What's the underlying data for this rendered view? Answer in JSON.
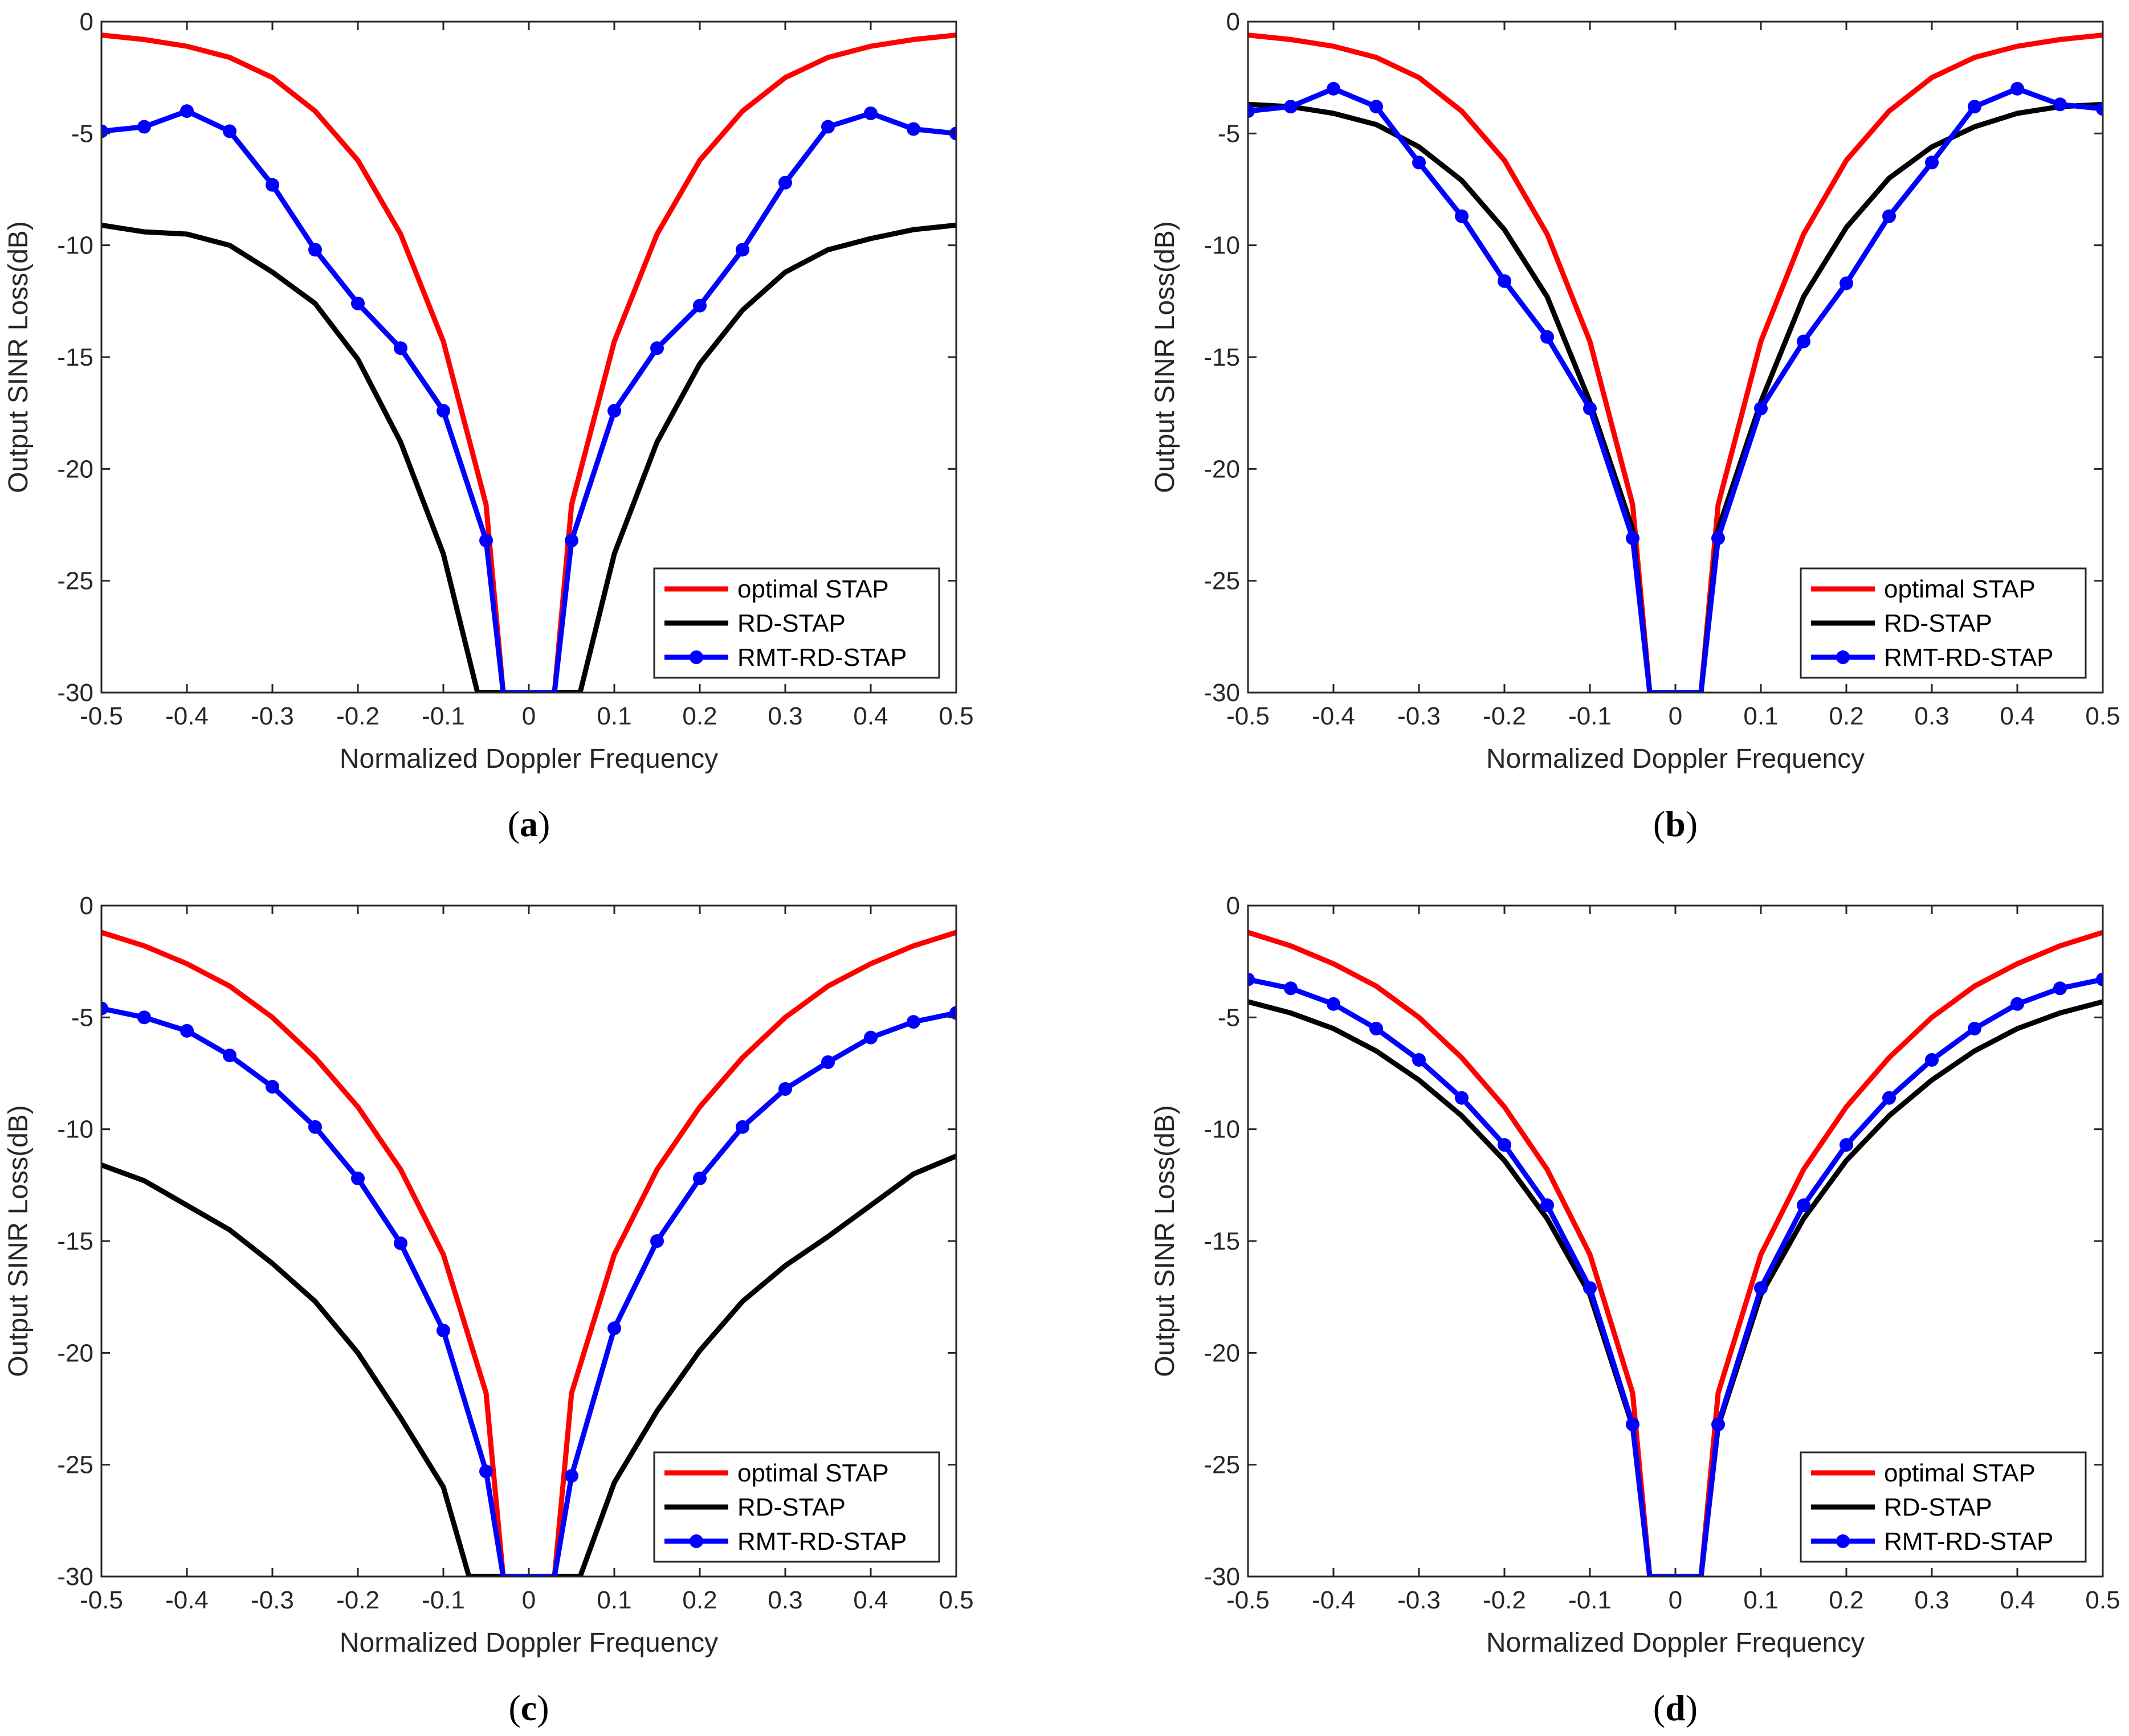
{
  "figure": {
    "colors": {
      "optimal": "#ff0000",
      "rd": "#000000",
      "rmt": "#0000ff",
      "axis": "#262626"
    }
  },
  "chart_data": [
    {
      "id": "a",
      "caption": "a",
      "type": "line",
      "xlabel": "Normalized Doppler Frequency",
      "ylabel": "Output SINR Loss(dB)",
      "xlim": [
        -0.5,
        0.5
      ],
      "ylim": [
        -30,
        0
      ],
      "xticks": [
        "-0.5",
        "-0.4",
        "-0.3",
        "-0.2",
        "-0.1",
        "0",
        "0.1",
        "0.2",
        "0.3",
        "0.4",
        "0.5"
      ],
      "yticks": [
        "0",
        "-5",
        "-10",
        "-15",
        "-20",
        "-25",
        "-30"
      ],
      "legend_position": "bottom-right",
      "grid": false,
      "series": [
        {
          "name": "optimal STAP",
          "key": "optimal",
          "marker": false,
          "x": [
            -0.5,
            -0.45,
            -0.4,
            -0.35,
            -0.3,
            -0.25,
            -0.2,
            -0.15,
            -0.1,
            -0.05,
            -0.03,
            0.03,
            0.05,
            0.1,
            0.15,
            0.2,
            0.25,
            0.3,
            0.35,
            0.4,
            0.45,
            0.5
          ],
          "y": [
            -0.6,
            -0.8,
            -1.1,
            -1.6,
            -2.5,
            -4.0,
            -6.2,
            -9.5,
            -14.3,
            -21.6,
            -30,
            -30,
            -21.6,
            -14.3,
            -9.5,
            -6.2,
            -4.0,
            -2.5,
            -1.6,
            -1.1,
            -0.8,
            -0.6
          ]
        },
        {
          "name": "RD-STAP",
          "key": "rd",
          "marker": false,
          "x": [
            -0.5,
            -0.45,
            -0.4,
            -0.35,
            -0.3,
            -0.25,
            -0.2,
            -0.15,
            -0.1,
            -0.06,
            0.06,
            0.1,
            0.15,
            0.2,
            0.25,
            0.3,
            0.35,
            0.4,
            0.45,
            0.5
          ],
          "y": [
            -9.1,
            -9.4,
            -9.5,
            -10.0,
            -11.2,
            -12.6,
            -15.1,
            -18.8,
            -23.8,
            -30,
            -30,
            -23.8,
            -18.8,
            -15.3,
            -12.9,
            -11.2,
            -10.2,
            -9.7,
            -9.3,
            -9.1
          ]
        },
        {
          "name": "RMT-RD-STAP",
          "key": "rmt",
          "marker": true,
          "x": [
            -0.5,
            -0.45,
            -0.4,
            -0.35,
            -0.3,
            -0.25,
            -0.2,
            -0.15,
            -0.1,
            -0.05,
            -0.03,
            0.03,
            0.05,
            0.1,
            0.15,
            0.2,
            0.25,
            0.3,
            0.35,
            0.4,
            0.45,
            0.5
          ],
          "y": [
            -4.9,
            -4.7,
            -4.0,
            -4.9,
            -7.3,
            -10.2,
            -12.6,
            -14.6,
            -17.4,
            -23.2,
            -30,
            -30,
            -23.2,
            -17.4,
            -14.6,
            -12.7,
            -10.2,
            -7.2,
            -4.7,
            -4.1,
            -4.8,
            -5.0
          ]
        }
      ]
    },
    {
      "id": "b",
      "caption": "b",
      "type": "line",
      "xlabel": "Normalized Doppler Frequency",
      "ylabel": "Output SINR Loss(dB)",
      "xlim": [
        -0.5,
        0.5
      ],
      "ylim": [
        -30,
        0
      ],
      "xticks": [
        "-0.5",
        "-0.4",
        "-0.3",
        "-0.2",
        "-0.1",
        "0",
        "0.1",
        "0.2",
        "0.3",
        "0.4",
        "0.5"
      ],
      "yticks": [
        "0",
        "-5",
        "-10",
        "-15",
        "-20",
        "-25",
        "-30"
      ],
      "legend_position": "bottom-right",
      "grid": false,
      "series": [
        {
          "name": "optimal STAP",
          "key": "optimal",
          "marker": false,
          "x": [
            -0.5,
            -0.45,
            -0.4,
            -0.35,
            -0.3,
            -0.25,
            -0.2,
            -0.15,
            -0.1,
            -0.05,
            -0.03,
            0.03,
            0.05,
            0.1,
            0.15,
            0.2,
            0.25,
            0.3,
            0.35,
            0.4,
            0.45,
            0.5
          ],
          "y": [
            -0.6,
            -0.8,
            -1.1,
            -1.6,
            -2.5,
            -4.0,
            -6.2,
            -9.5,
            -14.3,
            -21.6,
            -30,
            -30,
            -21.6,
            -14.3,
            -9.5,
            -6.2,
            -4.0,
            -2.5,
            -1.6,
            -1.1,
            -0.8,
            -0.6
          ]
        },
        {
          "name": "RD-STAP",
          "key": "rd",
          "marker": false,
          "x": [
            -0.5,
            -0.45,
            -0.4,
            -0.35,
            -0.3,
            -0.25,
            -0.2,
            -0.15,
            -0.1,
            -0.05,
            -0.03,
            0.03,
            0.05,
            0.1,
            0.15,
            0.2,
            0.25,
            0.3,
            0.35,
            0.4,
            0.45,
            0.5
          ],
          "y": [
            -3.7,
            -3.8,
            -4.1,
            -4.6,
            -5.6,
            -7.1,
            -9.3,
            -12.3,
            -17.0,
            -22.7,
            -30,
            -30,
            -22.7,
            -17.0,
            -12.3,
            -9.2,
            -7.0,
            -5.6,
            -4.7,
            -4.1,
            -3.8,
            -3.7
          ]
        },
        {
          "name": "RMT-RD-STAP",
          "key": "rmt",
          "marker": true,
          "x": [
            -0.5,
            -0.45,
            -0.4,
            -0.35,
            -0.3,
            -0.25,
            -0.2,
            -0.15,
            -0.1,
            -0.05,
            -0.03,
            0.03,
            0.05,
            0.1,
            0.15,
            0.2,
            0.25,
            0.3,
            0.35,
            0.4,
            0.45,
            0.5
          ],
          "y": [
            -4.0,
            -3.8,
            -3.0,
            -3.8,
            -6.3,
            -8.7,
            -11.6,
            -14.1,
            -17.3,
            -23.1,
            -30,
            -30,
            -23.1,
            -17.3,
            -14.3,
            -11.7,
            -8.7,
            -6.3,
            -3.8,
            -3.0,
            -3.7,
            -3.9
          ]
        }
      ]
    },
    {
      "id": "c",
      "caption": "c",
      "type": "line",
      "xlabel": "Normalized Doppler Frequency",
      "ylabel": "Output SINR Loss(dB)",
      "xlim": [
        -0.5,
        0.5
      ],
      "ylim": [
        -30,
        0
      ],
      "xticks": [
        "-0.5",
        "-0.4",
        "-0.3",
        "-0.2",
        "-0.1",
        "0",
        "0.1",
        "0.2",
        "0.3",
        "0.4",
        "0.5"
      ],
      "yticks": [
        "0",
        "-5",
        "-10",
        "-15",
        "-20",
        "-25",
        "-30"
      ],
      "legend_position": "bottom-right",
      "grid": false,
      "series": [
        {
          "name": "optimal STAP",
          "key": "optimal",
          "marker": false,
          "x": [
            -0.5,
            -0.45,
            -0.4,
            -0.35,
            -0.3,
            -0.25,
            -0.2,
            -0.15,
            -0.1,
            -0.05,
            -0.03,
            0.03,
            0.05,
            0.1,
            0.15,
            0.2,
            0.25,
            0.3,
            0.35,
            0.4,
            0.45,
            0.5
          ],
          "y": [
            -1.2,
            -1.8,
            -2.6,
            -3.6,
            -5.0,
            -6.8,
            -9.0,
            -11.8,
            -15.6,
            -21.8,
            -30,
            -30,
            -21.8,
            -15.6,
            -11.8,
            -9.0,
            -6.8,
            -5.0,
            -3.6,
            -2.6,
            -1.8,
            -1.2
          ]
        },
        {
          "name": "RD-STAP",
          "key": "rd",
          "marker": false,
          "x": [
            -0.5,
            -0.45,
            -0.4,
            -0.35,
            -0.3,
            -0.25,
            -0.2,
            -0.15,
            -0.1,
            -0.07,
            0.06,
            0.1,
            0.15,
            0.2,
            0.25,
            0.3,
            0.35,
            0.4,
            0.45,
            0.5
          ],
          "y": [
            -11.6,
            -12.3,
            -13.4,
            -14.5,
            -16.0,
            -17.7,
            -20.0,
            -22.9,
            -26.0,
            -30,
            -30,
            -25.8,
            -22.6,
            -19.9,
            -17.7,
            -16.1,
            -14.8,
            -13.4,
            -12.0,
            -11.2
          ]
        },
        {
          "name": "RMT-RD-STAP",
          "key": "rmt",
          "marker": true,
          "x": [
            -0.5,
            -0.45,
            -0.4,
            -0.35,
            -0.3,
            -0.25,
            -0.2,
            -0.15,
            -0.1,
            -0.05,
            -0.03,
            0.03,
            0.05,
            0.1,
            0.15,
            0.2,
            0.25,
            0.3,
            0.35,
            0.4,
            0.45,
            0.5
          ],
          "y": [
            -4.6,
            -5.0,
            -5.6,
            -6.7,
            -8.1,
            -9.9,
            -12.2,
            -15.1,
            -19.0,
            -25.3,
            -30,
            -30,
            -25.5,
            -18.9,
            -15.0,
            -12.2,
            -9.9,
            -8.2,
            -7.0,
            -5.9,
            -5.2,
            -4.8
          ]
        }
      ]
    },
    {
      "id": "d",
      "caption": "d",
      "type": "line",
      "xlabel": "Normalized Doppler Frequency",
      "ylabel": "Output SINR Loss(dB)",
      "xlim": [
        -0.5,
        0.5
      ],
      "ylim": [
        -30,
        0
      ],
      "xticks": [
        "-0.5",
        "-0.4",
        "-0.3",
        "-0.2",
        "-0.1",
        "0",
        "0.1",
        "0.2",
        "0.3",
        "0.4",
        "0.5"
      ],
      "yticks": [
        "0",
        "-5",
        "-10",
        "-15",
        "-20",
        "-25",
        "-30"
      ],
      "legend_position": "bottom-right",
      "grid": false,
      "series": [
        {
          "name": "optimal STAP",
          "key": "optimal",
          "marker": false,
          "x": [
            -0.5,
            -0.45,
            -0.4,
            -0.35,
            -0.3,
            -0.25,
            -0.2,
            -0.15,
            -0.1,
            -0.05,
            -0.03,
            0.03,
            0.05,
            0.1,
            0.15,
            0.2,
            0.25,
            0.3,
            0.35,
            0.4,
            0.45,
            0.5
          ],
          "y": [
            -1.2,
            -1.8,
            -2.6,
            -3.6,
            -5.0,
            -6.8,
            -9.0,
            -11.8,
            -15.6,
            -21.8,
            -30,
            -30,
            -21.8,
            -15.6,
            -11.8,
            -9.0,
            -6.8,
            -5.0,
            -3.6,
            -2.6,
            -1.8,
            -1.2
          ]
        },
        {
          "name": "RD-STAP",
          "key": "rd",
          "marker": false,
          "x": [
            -0.5,
            -0.45,
            -0.4,
            -0.35,
            -0.3,
            -0.25,
            -0.2,
            -0.15,
            -0.1,
            -0.05,
            -0.03,
            0.03,
            0.05,
            0.1,
            0.15,
            0.2,
            0.25,
            0.3,
            0.35,
            0.4,
            0.45,
            0.5
          ],
          "y": [
            -4.3,
            -4.8,
            -5.5,
            -6.5,
            -7.8,
            -9.4,
            -11.4,
            -14.0,
            -17.4,
            -23.3,
            -30,
            -30,
            -23.3,
            -17.4,
            -14.0,
            -11.4,
            -9.4,
            -7.8,
            -6.5,
            -5.5,
            -4.8,
            -4.3
          ]
        },
        {
          "name": "RMT-RD-STAP",
          "key": "rmt",
          "marker": true,
          "x": [
            -0.5,
            -0.45,
            -0.4,
            -0.35,
            -0.3,
            -0.25,
            -0.2,
            -0.15,
            -0.1,
            -0.05,
            -0.03,
            0.03,
            0.05,
            0.1,
            0.15,
            0.2,
            0.25,
            0.3,
            0.35,
            0.4,
            0.45,
            0.5
          ],
          "y": [
            -3.3,
            -3.7,
            -4.4,
            -5.5,
            -6.9,
            -8.6,
            -10.7,
            -13.4,
            -17.1,
            -23.2,
            -30,
            -30,
            -23.2,
            -17.1,
            -13.4,
            -10.7,
            -8.6,
            -6.9,
            -5.5,
            -4.4,
            -3.7,
            -3.3
          ]
        }
      ]
    }
  ]
}
